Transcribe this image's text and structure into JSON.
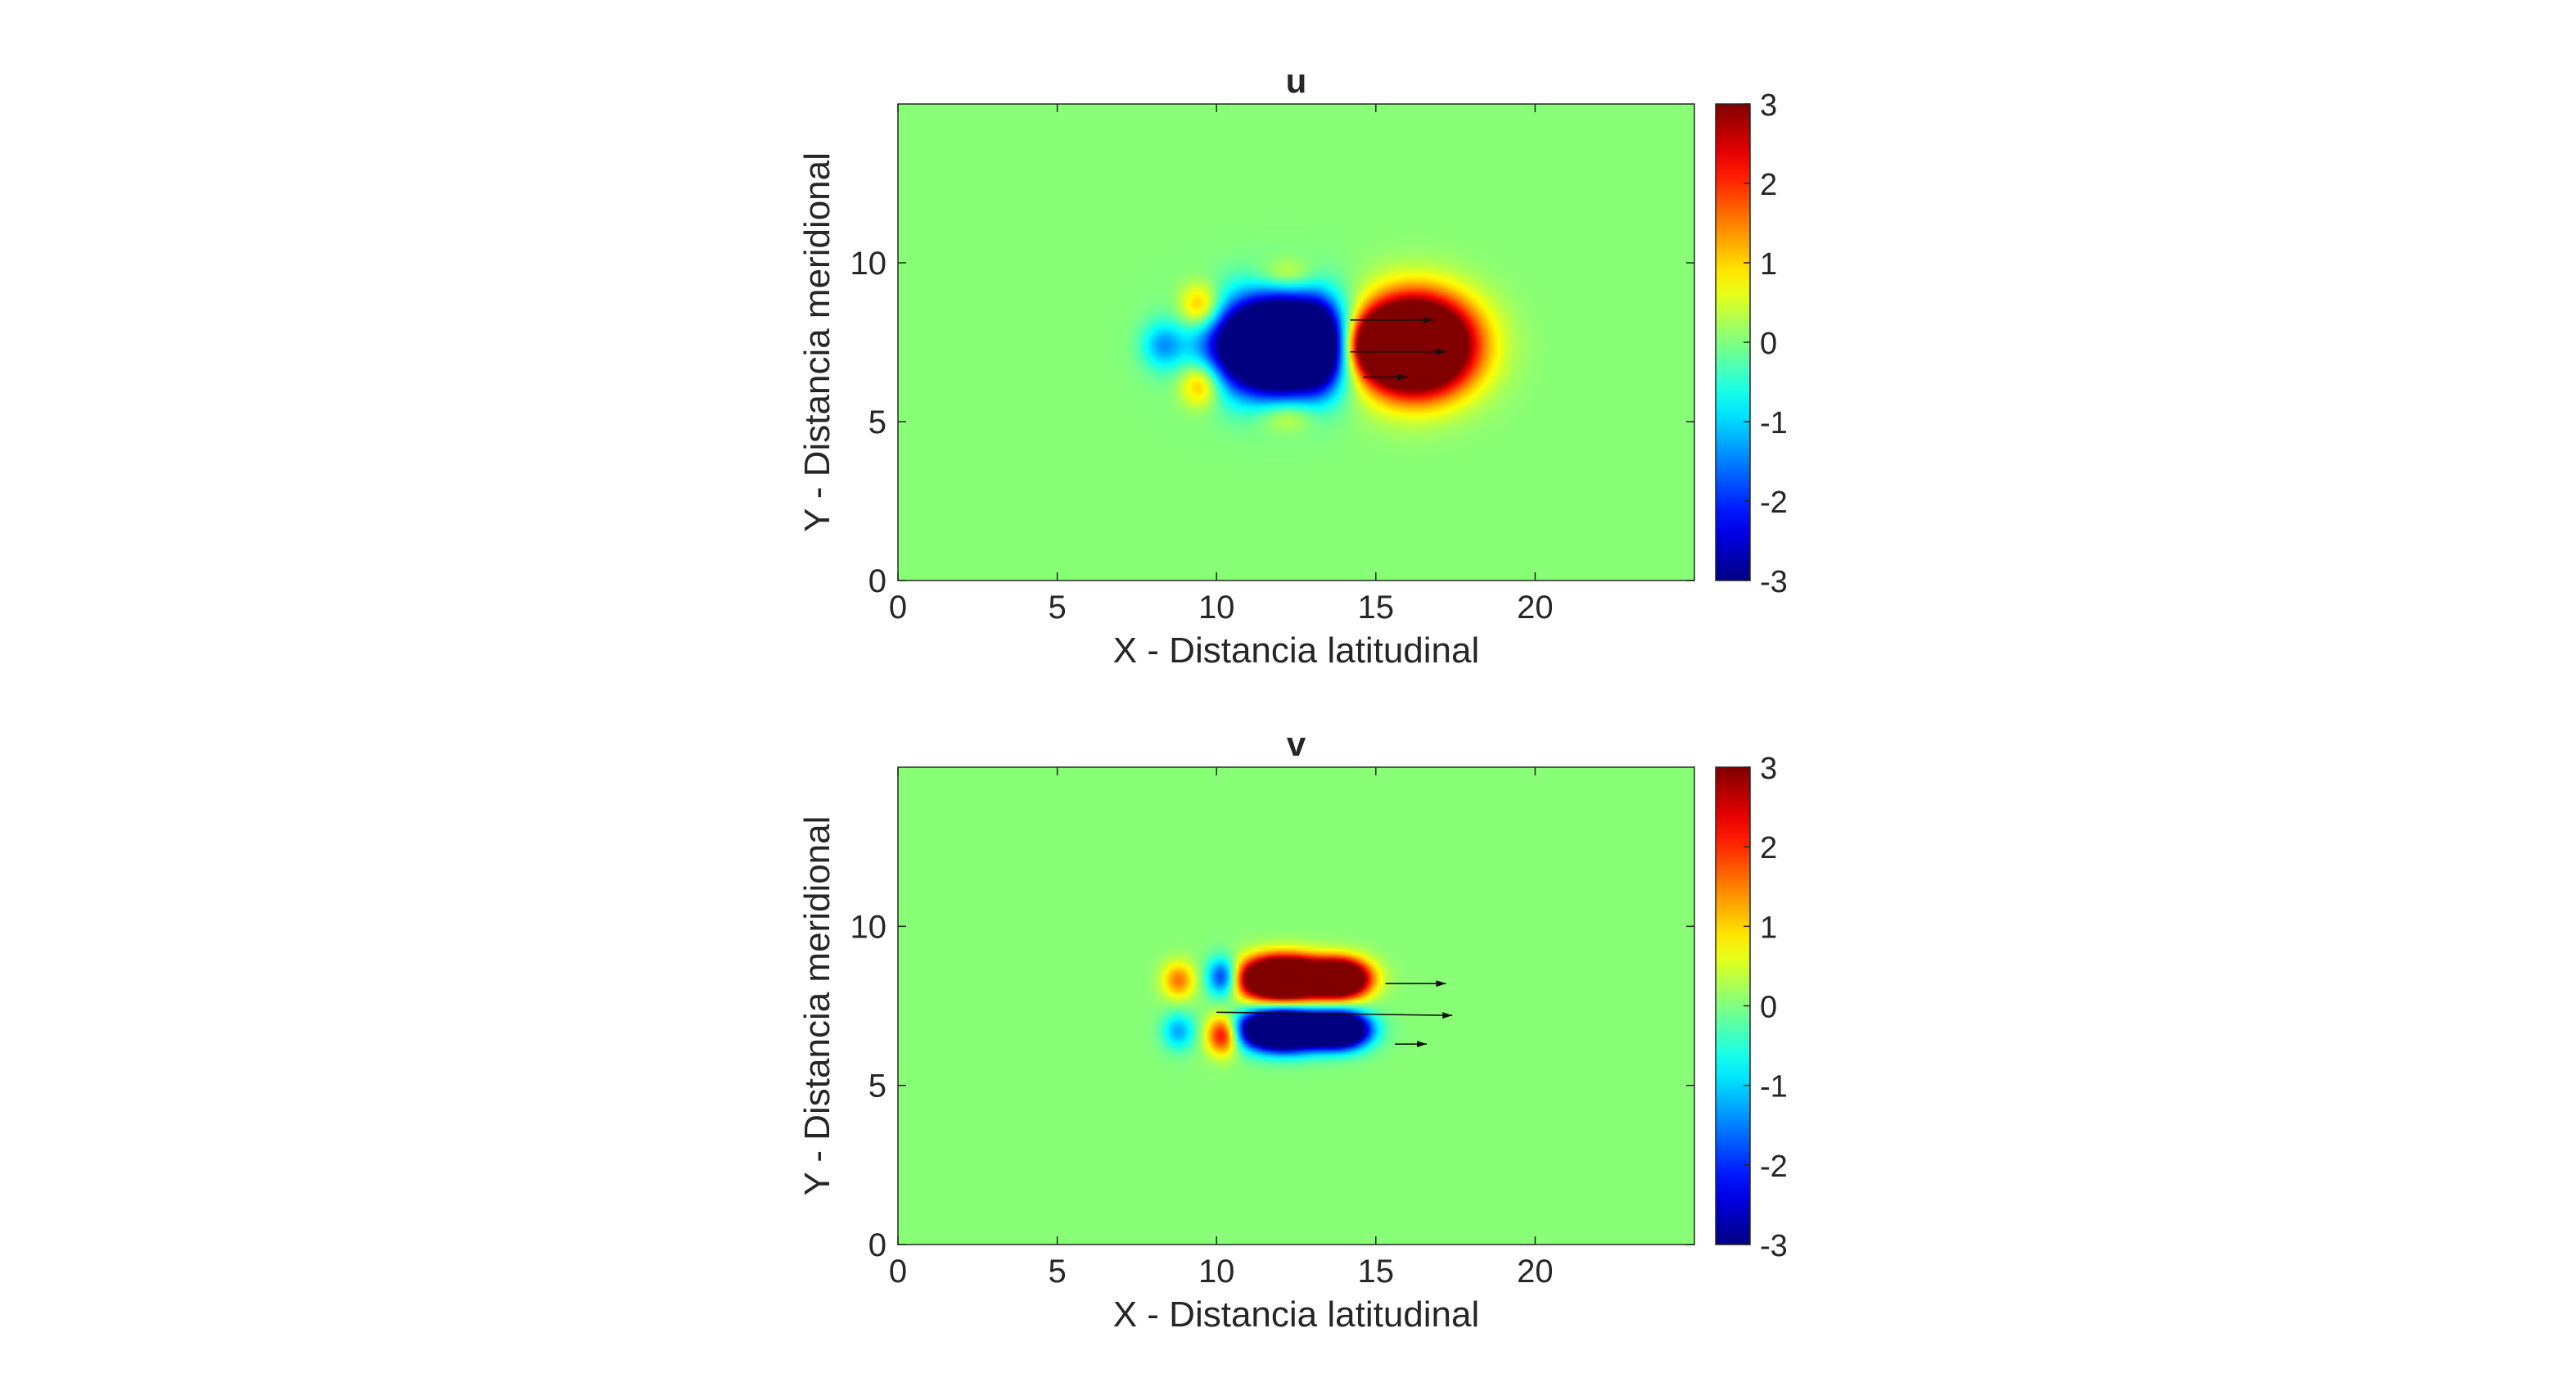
{
  "chart_data": [
    {
      "type": "heatmap",
      "title": "u",
      "xlabel": "X - Distancia latitudinal",
      "ylabel": "Y - Distancia meridional",
      "xlim": [
        0,
        25
      ],
      "ylim": [
        0,
        15
      ],
      "xticks": [
        0,
        5,
        10,
        15,
        20
      ],
      "yticks": [
        0,
        5,
        10
      ],
      "colorbar": {
        "limits": [
          -3,
          3
        ],
        "ticks": [
          3,
          2,
          1,
          0,
          -1,
          -2,
          -3
        ],
        "colormap": "jet"
      },
      "background_value": 0.05,
      "features": [
        {
          "x": 12.0,
          "y": 7.4,
          "sx": 1.4,
          "sy": 1.0,
          "value": -8
        },
        {
          "x": 16.2,
          "y": 7.4,
          "sx": 1.2,
          "sy": 1.0,
          "value": 8
        },
        {
          "x": 15.0,
          "y": 7.4,
          "sx": 0.6,
          "sy": 0.6,
          "value": 3
        },
        {
          "x": 9.5,
          "y": 8.6,
          "sx": 0.45,
          "sy": 0.5,
          "value": 1.6
        },
        {
          "x": 9.5,
          "y": 6.2,
          "sx": 0.45,
          "sy": 0.5,
          "value": 1.6
        },
        {
          "x": 8.3,
          "y": 7.4,
          "sx": 0.45,
          "sy": 0.5,
          "value": -1.2
        },
        {
          "x": 12.2,
          "y": 9.6,
          "sx": 0.6,
          "sy": 0.35,
          "value": 0.8
        },
        {
          "x": 12.2,
          "y": 5.2,
          "sx": 0.6,
          "sy": 0.35,
          "value": 0.8
        },
        {
          "x": 13.2,
          "y": 7.4,
          "sx": 0.4,
          "sy": 0.9,
          "value": -1.5
        }
      ],
      "vectors": [
        {
          "x": 14.2,
          "y": 8.2,
          "u": 2.6,
          "v": 0.0
        },
        {
          "x": 14.2,
          "y": 7.2,
          "u": 3.0,
          "v": 0.0
        },
        {
          "x": 14.6,
          "y": 6.4,
          "u": 1.4,
          "v": 0.0
        }
      ]
    },
    {
      "type": "heatmap",
      "title": "v",
      "xlabel": "X - Distancia latitudinal",
      "ylabel": "Y - Distancia meridional",
      "xlim": [
        0,
        25
      ],
      "ylim": [
        0,
        15
      ],
      "xticks": [
        0,
        5,
        10,
        15,
        20
      ],
      "yticks": [
        0,
        5,
        10
      ],
      "colorbar": {
        "limits": [
          -3,
          3
        ],
        "ticks": [
          3,
          2,
          1,
          0,
          -1,
          -2,
          -3
        ],
        "colormap": "jet"
      },
      "background_value": 0.05,
      "features": [
        {
          "x": 12.1,
          "y": 8.35,
          "sx": 0.9,
          "sy": 0.45,
          "value": 8
        },
        {
          "x": 13.9,
          "y": 8.35,
          "sx": 0.6,
          "sy": 0.4,
          "value": 6
        },
        {
          "x": 12.1,
          "y": 6.75,
          "sx": 0.9,
          "sy": 0.42,
          "value": -8
        },
        {
          "x": 13.9,
          "y": 6.75,
          "sx": 0.6,
          "sy": 0.38,
          "value": -6
        },
        {
          "x": 10.2,
          "y": 8.4,
          "sx": 0.35,
          "sy": 0.42,
          "value": -2.6
        },
        {
          "x": 10.2,
          "y": 6.6,
          "sx": 0.35,
          "sy": 0.42,
          "value": 2.8
        },
        {
          "x": 8.8,
          "y": 8.3,
          "sx": 0.35,
          "sy": 0.4,
          "value": 1.5
        },
        {
          "x": 8.8,
          "y": 6.7,
          "sx": 0.35,
          "sy": 0.4,
          "value": -1.3
        }
      ],
      "vectors": [
        {
          "x": 10.0,
          "y": 7.3,
          "u": 7.4,
          "v": -0.1
        },
        {
          "x": 15.3,
          "y": 8.2,
          "u": 1.9,
          "v": 0.0
        },
        {
          "x": 15.6,
          "y": 6.3,
          "u": 1.0,
          "v": 0.0
        }
      ]
    }
  ]
}
